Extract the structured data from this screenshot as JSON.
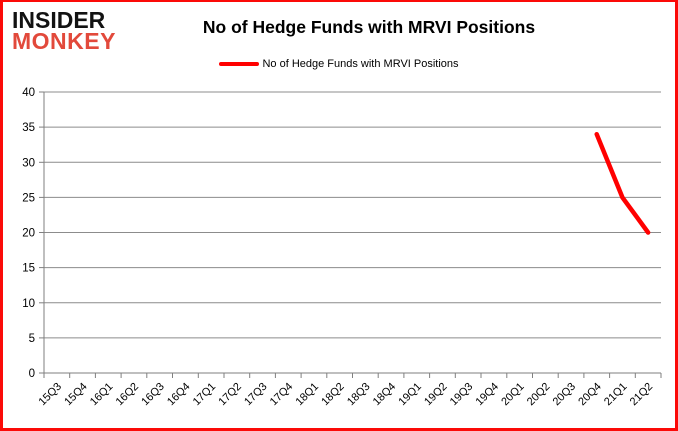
{
  "logo": {
    "line1": "INSIDER",
    "line2": "MONKEY"
  },
  "chart_data": {
    "type": "line",
    "title": "No of Hedge Funds with MRVI Positions",
    "xlabel": "",
    "ylabel": "",
    "categories": [
      "15Q3",
      "15Q4",
      "16Q1",
      "16Q2",
      "16Q3",
      "16Q4",
      "17Q1",
      "17Q2",
      "17Q3",
      "17Q4",
      "18Q1",
      "18Q2",
      "18Q3",
      "18Q4",
      "19Q1",
      "19Q2",
      "19Q3",
      "19Q4",
      "20Q1",
      "20Q2",
      "20Q3",
      "20Q4",
      "21Q1",
      "21Q2"
    ],
    "series": [
      {
        "name": "No of Hedge Funds with MRVI Positions",
        "color": "#ff0000",
        "values": [
          null,
          null,
          null,
          null,
          null,
          null,
          null,
          null,
          null,
          null,
          null,
          null,
          null,
          null,
          null,
          null,
          null,
          null,
          null,
          null,
          null,
          34,
          25,
          20
        ]
      }
    ],
    "ylim": [
      0,
      40
    ],
    "ytick_step": 5,
    "grid": true,
    "legend_position": "top-center"
  },
  "colors": {
    "line": "#ff0000",
    "border": "#fb0a08",
    "grid": "#8c8c8c",
    "axis": "#7f7f7f",
    "logo_insider": "#121212",
    "logo_monkey": "#e2493b",
    "text": "#000000",
    "background": "#ffffff"
  }
}
